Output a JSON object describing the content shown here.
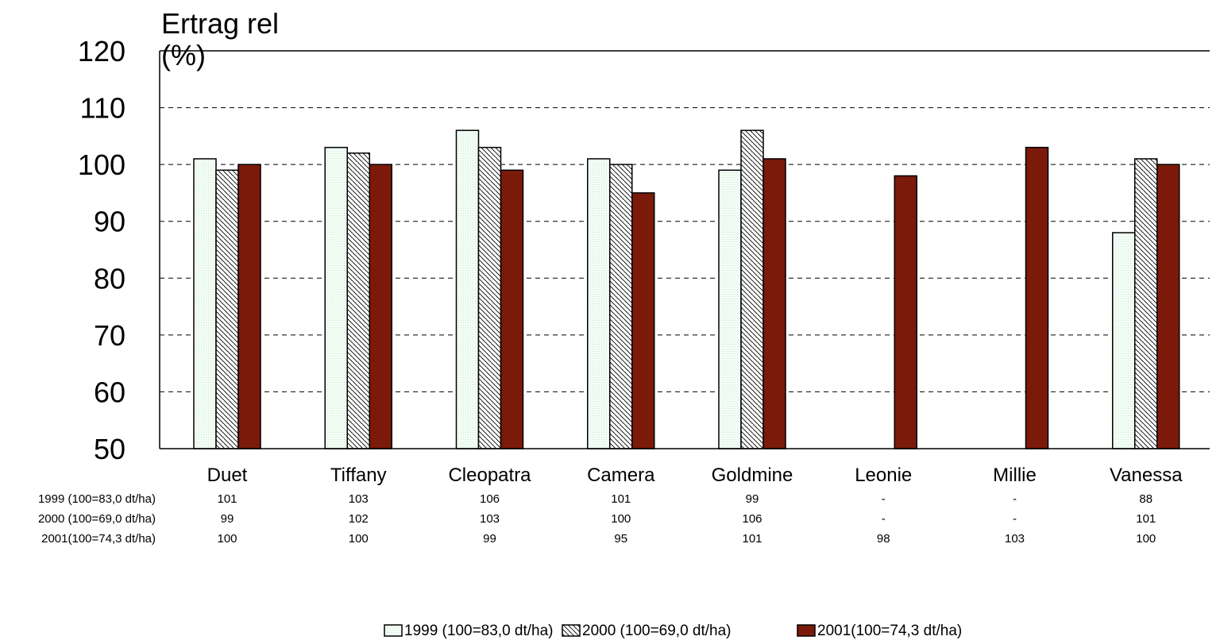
{
  "chart_data": {
    "type": "bar",
    "title": "",
    "ylabel": "Ertrag rel (%)",
    "ylabel_lines": [
      "Ertrag rel",
      "(%)"
    ],
    "xlabel": "",
    "ylim": [
      50,
      120
    ],
    "yticks": [
      50,
      60,
      70,
      80,
      90,
      100,
      110,
      120
    ],
    "grid": "dashed-horizontal",
    "legend_position": "bottom-center",
    "categories": [
      "Duet",
      "Tiffany",
      "Cleopatra",
      "Camera",
      "Goldmine",
      "Leonie",
      "Millie",
      "Vanessa"
    ],
    "series": [
      {
        "name": "1999 (100=83,0 dt/ha)",
        "fill": "#f2fdf5",
        "values": [
          101,
          103,
          106,
          101,
          99,
          null,
          null,
          88
        ],
        "table_values": [
          "101",
          "103",
          "106",
          "101",
          "99",
          "-",
          "-",
          "88"
        ]
      },
      {
        "name": "2000 (100=69,0 dt/ha)",
        "fill": "hatched",
        "values": [
          99,
          102,
          103,
          100,
          106,
          null,
          null,
          101
        ],
        "table_values": [
          "99",
          "102",
          "103",
          "100",
          "106",
          "-",
          "-",
          "101"
        ]
      },
      {
        "name": "2001(100=74,3 dt/ha)",
        "fill": "#7b1a0a",
        "values": [
          100,
          100,
          99,
          95,
          101,
          98,
          103,
          100
        ],
        "table_values": [
          "100",
          "100",
          "99",
          "95",
          "101",
          "98",
          "103",
          "100"
        ]
      }
    ]
  }
}
